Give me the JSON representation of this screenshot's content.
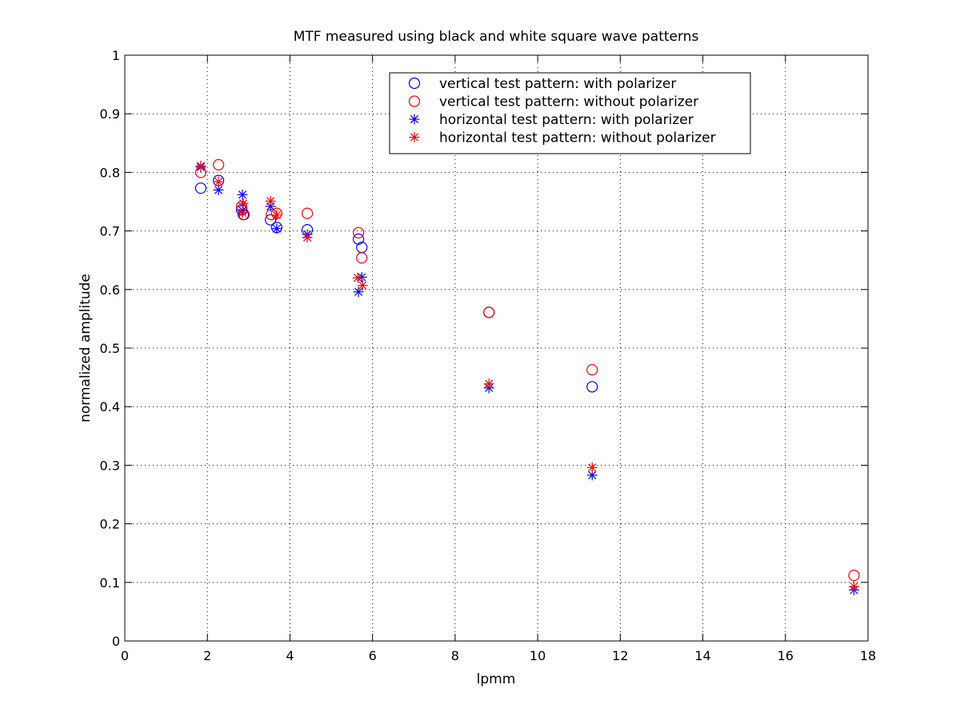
{
  "chart_data": {
    "type": "scatter",
    "title": "MTF measured using black and white square wave patterns",
    "xlabel": "lpmm",
    "ylabel": "normalized amplitude",
    "xlim": [
      0,
      18
    ],
    "ylim": [
      0,
      1
    ],
    "xticks": [
      "0",
      "2",
      "4",
      "6",
      "8",
      "10",
      "12",
      "14",
      "16",
      "18"
    ],
    "yticks": [
      "0",
      "0.1",
      "0.2",
      "0.3",
      "0.4",
      "0.5",
      "0.6",
      "0.7",
      "0.8",
      "0.9",
      "1"
    ],
    "grid": true,
    "legend_position": "top-right",
    "series": [
      {
        "name": "vertical test pattern: with polarizer",
        "color": "#0000ff",
        "marker": "circle",
        "x": [
          1.84,
          2.27,
          2.83,
          2.87,
          3.53,
          3.68,
          4.42,
          5.66,
          5.74,
          8.82,
          11.32
        ],
        "y": [
          0.773,
          0.786,
          0.736,
          0.728,
          0.719,
          0.706,
          0.702,
          0.686,
          0.672,
          0.561,
          0.434
        ]
      },
      {
        "name": "vertical test pattern: without polarizer",
        "color": "#ff0000",
        "marker": "circle",
        "x": [
          1.84,
          2.27,
          2.83,
          2.89,
          3.55,
          3.68,
          4.42,
          5.66,
          5.74,
          8.82,
          11.32,
          17.66
        ],
        "y": [
          0.8,
          0.813,
          0.742,
          0.728,
          0.728,
          0.73,
          0.73,
          0.697,
          0.654,
          0.561,
          0.463,
          0.112
        ]
      },
      {
        "name": "horizontal test pattern: with polarizer",
        "color": "#0000ff",
        "marker": "star",
        "x": [
          1.84,
          2.27,
          2.85,
          2.85,
          3.53,
          3.68,
          4.42,
          5.66,
          5.74,
          8.82,
          11.32,
          17.66
        ],
        "y": [
          0.809,
          0.77,
          0.762,
          0.735,
          0.742,
          0.704,
          0.694,
          0.596,
          0.621,
          0.432,
          0.283,
          0.087
        ]
      },
      {
        "name": "horizontal test pattern: without polarizer",
        "color": "#ff0000",
        "marker": "star",
        "x": [
          1.84,
          2.27,
          2.87,
          2.85,
          3.53,
          3.68,
          4.42,
          5.64,
          5.76,
          8.82,
          11.32,
          17.66
        ],
        "y": [
          0.811,
          0.784,
          0.747,
          0.731,
          0.751,
          0.727,
          0.689,
          0.62,
          0.607,
          0.439,
          0.296,
          0.093
        ]
      }
    ]
  }
}
